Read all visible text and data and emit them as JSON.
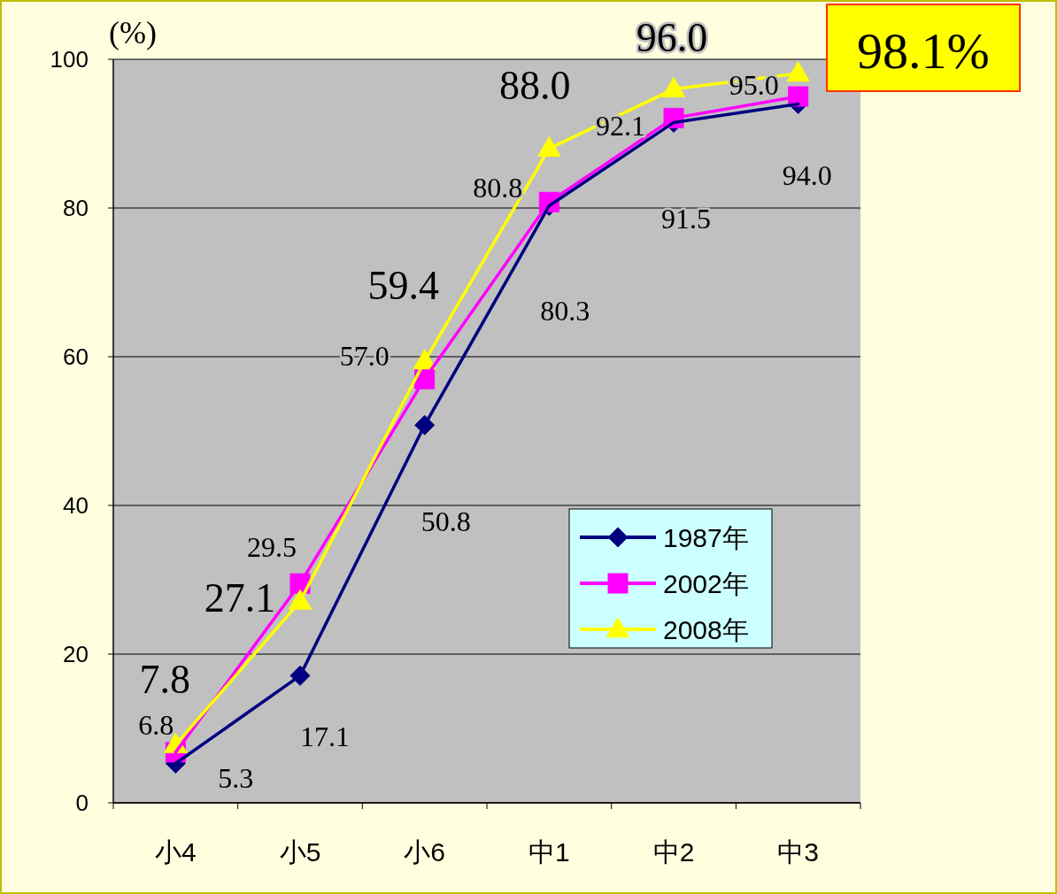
{
  "chart_data": {
    "type": "line",
    "ylabel": "(%)",
    "categories": [
      "小4",
      "小5",
      "小6",
      "中1",
      "中2",
      "中3"
    ],
    "series": [
      {
        "name": "1987年",
        "color": "#000080",
        "marker": "diamond",
        "values": [
          5.3,
          17.1,
          50.8,
          80.3,
          91.5,
          94.0
        ],
        "value_labels": [
          "5.3",
          "17.1",
          "50.8",
          "80.3",
          "91.5",
          "94.0"
        ]
      },
      {
        "name": "2002年",
        "color": "#ff00ff",
        "marker": "square",
        "values": [
          6.8,
          29.5,
          57.0,
          80.8,
          92.1,
          95.0
        ],
        "value_labels": [
          "6.8",
          "29.5",
          "57.0",
          "80.8",
          "92.1",
          "95.0"
        ]
      },
      {
        "name": "2008年",
        "color": "#ffff00",
        "marker": "triangle",
        "values": [
          7.8,
          27.1,
          59.4,
          88.0,
          96.0,
          98.1
        ],
        "value_labels": [
          "7.8",
          "27.1",
          "59.4",
          "88.0",
          "96.0",
          "98.1%"
        ]
      }
    ],
    "ylim": [
      0,
      100
    ],
    "yticks": [
      0,
      20,
      40,
      60,
      80,
      100
    ],
    "grid": "y",
    "legend": "right"
  }
}
